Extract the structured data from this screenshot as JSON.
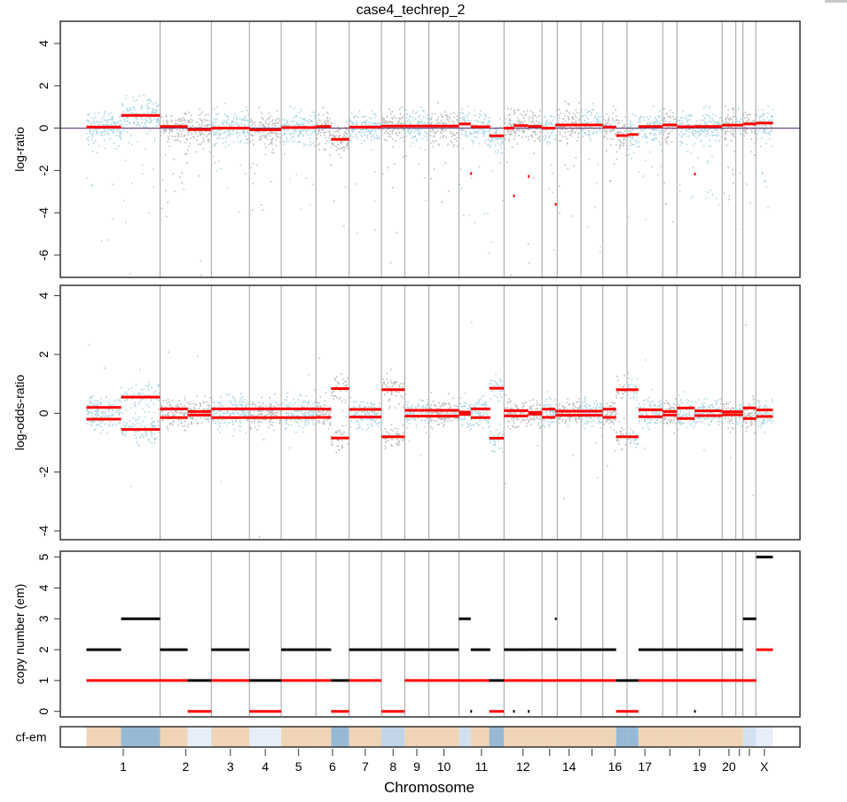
{
  "chart_data": {
    "type": "scatter",
    "title": "case4_techrep_2",
    "xlabel": "Chromosome",
    "panels": [
      {
        "id": "cnlr",
        "ylabel": "log-ratio",
        "ylim": [
          -7.05,
          5.05
        ],
        "yticks": [
          -6,
          -4,
          -2,
          0,
          2,
          4
        ],
        "hline": 0
      },
      {
        "id": "lor",
        "ylabel": "log-odds-ratio",
        "ylim": [
          -4.3,
          4.35
        ],
        "yticks": [
          -4,
          -2,
          0,
          2,
          4
        ]
      },
      {
        "id": "cn",
        "ylabel": "copy number (em)",
        "ylim": [
          -0.18,
          5.19
        ],
        "yticks": [
          0,
          1,
          2,
          3,
          4,
          5
        ]
      },
      {
        "id": "cf",
        "ylabel": "cf-em"
      }
    ],
    "xlim": [
      -55,
      1502
    ],
    "chromosomes": [
      {
        "name": "1",
        "start": 0,
        "end": 155,
        "label": "1"
      },
      {
        "name": "2",
        "start": 155,
        "end": 263,
        "label": "2"
      },
      {
        "name": "3",
        "start": 263,
        "end": 343,
        "label": "3"
      },
      {
        "name": "4",
        "start": 343,
        "end": 410,
        "label": "4"
      },
      {
        "name": "5",
        "start": 410,
        "end": 483,
        "label": "5"
      },
      {
        "name": "6",
        "start": 483,
        "end": 553,
        "label": "6"
      },
      {
        "name": "7",
        "start": 553,
        "end": 621,
        "label": "7"
      },
      {
        "name": "8",
        "start": 621,
        "end": 670,
        "label": "8"
      },
      {
        "name": "9",
        "start": 670,
        "end": 721,
        "label": "9"
      },
      {
        "name": "10",
        "start": 721,
        "end": 784,
        "label": "10"
      },
      {
        "name": "11",
        "start": 784,
        "end": 879,
        "label": "11"
      },
      {
        "name": "12",
        "start": 879,
        "end": 959,
        "label": "12"
      },
      {
        "name": "13",
        "start": 959,
        "end": 991,
        "label": ""
      },
      {
        "name": "14",
        "start": 991,
        "end": 1041,
        "label": "14"
      },
      {
        "name": "15",
        "start": 1041,
        "end": 1087,
        "label": ""
      },
      {
        "name": "16",
        "start": 1087,
        "end": 1138,
        "label": "16"
      },
      {
        "name": "17",
        "start": 1138,
        "end": 1213,
        "label": "17"
      },
      {
        "name": "18",
        "start": 1213,
        "end": 1243,
        "label": ""
      },
      {
        "name": "19",
        "start": 1243,
        "end": 1338,
        "label": "19"
      },
      {
        "name": "20",
        "start": 1338,
        "end": 1367,
        "label": "20"
      },
      {
        "name": "21",
        "start": 1367,
        "end": 1382,
        "label": ""
      },
      {
        "name": "22",
        "start": 1382,
        "end": 1409,
        "label": ""
      },
      {
        "name": "X",
        "start": 1409,
        "end": 1445,
        "label": "X"
      }
    ],
    "segments": [
      {
        "start": 0,
        "end": 73,
        "cnlr": 0.05,
        "lor": 0.2,
        "tcn": 2,
        "lcn": 1,
        "cf": "normal"
      },
      {
        "start": 73,
        "end": 155,
        "cnlr": 0.6,
        "lor": 0.55,
        "tcn": 3,
        "lcn": 1,
        "cf": "high"
      },
      {
        "start": 155,
        "end": 213,
        "cnlr": 0.08,
        "lor": 0.15,
        "tcn": 2,
        "lcn": 1,
        "cf": "normal"
      },
      {
        "start": 213,
        "end": 263,
        "cnlr": -0.07,
        "lor": 0.06,
        "tcn": 1,
        "lcn": 0,
        "cf": "low"
      },
      {
        "start": 263,
        "end": 343,
        "cnlr": 0.0,
        "lor": 0.15,
        "tcn": 2,
        "lcn": 1,
        "cf": "normal"
      },
      {
        "start": 343,
        "end": 410,
        "cnlr": -0.08,
        "lor": 0.15,
        "tcn": 1,
        "lcn": 0,
        "cf": "low"
      },
      {
        "start": 410,
        "end": 483,
        "cnlr": 0.03,
        "lor": 0.15,
        "tcn": 2,
        "lcn": 1,
        "cf": "normal"
      },
      {
        "start": 483,
        "end": 515,
        "cnlr": 0.08,
        "lor": 0.14,
        "tcn": 2,
        "lcn": 1,
        "cf": "normal"
      },
      {
        "start": 515,
        "end": 553,
        "cnlr": -0.53,
        "lor": 0.84,
        "tcn": 1,
        "lcn": 0,
        "cf": "high"
      },
      {
        "start": 553,
        "end": 621,
        "cnlr": 0.05,
        "lor": 0.13,
        "tcn": 2,
        "lcn": 1,
        "cf": "normal"
      },
      {
        "start": 621,
        "end": 670,
        "cnlr": 0.1,
        "lor": 0.8,
        "tcn": 2,
        "lcn": 0,
        "cf": "mid"
      },
      {
        "start": 670,
        "end": 784,
        "cnlr": 0.1,
        "lor": 0.1,
        "tcn": 2,
        "lcn": 1,
        "cf": "normal"
      },
      {
        "start": 784,
        "end": 809,
        "cnlr": 0.2,
        "lor": 0.04,
        "tcn": 3,
        "lcn": 1,
        "cf": "lowmid"
      },
      {
        "start": 808,
        "end": 810,
        "cnlr": -2.14,
        "lor": null,
        "tcn": 0,
        "lcn": null,
        "cf": "normal"
      },
      {
        "start": 809,
        "end": 850,
        "cnlr": 0.07,
        "lor": 0.15,
        "tcn": 2,
        "lcn": 1,
        "cf": "normal"
      },
      {
        "start": 848,
        "end": 879,
        "cnlr": -0.36,
        "lor": 0.85,
        "tcn": 1,
        "lcn": 0,
        "cf": "high"
      },
      {
        "start": 879,
        "end": 899,
        "cnlr": 0.0,
        "lor": 0.09,
        "tcn": 2,
        "lcn": 1,
        "cf": "normal"
      },
      {
        "start": 898,
        "end": 900,
        "cnlr": -3.2,
        "lor": null,
        "tcn": 0,
        "lcn": null,
        "cf": "mid"
      },
      {
        "start": 899,
        "end": 930,
        "cnlr": 0.12,
        "lor": 0.09,
        "tcn": 2,
        "lcn": 1,
        "cf": "normal"
      },
      {
        "start": 929,
        "end": 931,
        "cnlr": -2.28,
        "lor": null,
        "tcn": 0,
        "lcn": null,
        "cf": "mid"
      },
      {
        "start": 930,
        "end": 959,
        "cnlr": 0.08,
        "lor": 0.03,
        "tcn": 2,
        "lcn": 1,
        "cf": "normal"
      },
      {
        "start": 959,
        "end": 987,
        "cnlr": 0.0,
        "lor": 0.14,
        "tcn": 2,
        "lcn": 1,
        "cf": "normal"
      },
      {
        "start": 986,
        "end": 988,
        "cnlr": -3.6,
        "lor": null,
        "tcn": 3,
        "lcn": null,
        "cf": "low"
      },
      {
        "start": 987,
        "end": 1087,
        "cnlr": 0.15,
        "lor": 0.07,
        "tcn": 2,
        "lcn": 1,
        "cf": "normal"
      },
      {
        "start": 1087,
        "end": 1115,
        "cnlr": 0.05,
        "lor": 0.14,
        "tcn": 2,
        "lcn": 1,
        "cf": "normal"
      },
      {
        "start": 1115,
        "end": 1140,
        "cnlr": -0.35,
        "lor": 0.8,
        "tcn": 1,
        "lcn": 0,
        "cf": "high"
      },
      {
        "start": 1140,
        "end": 1162,
        "cnlr": -0.3,
        "lor": 0.8,
        "tcn": 1,
        "lcn": 0,
        "cf": "high"
      },
      {
        "start": 1162,
        "end": 1213,
        "cnlr": 0.08,
        "lor": 0.12,
        "tcn": 2,
        "lcn": 1,
        "cf": "normal"
      },
      {
        "start": 1213,
        "end": 1243,
        "cnlr": 0.15,
        "lor": 0.06,
        "tcn": 2,
        "lcn": 1,
        "cf": "normal"
      },
      {
        "start": 1243,
        "end": 1280,
        "cnlr": 0.07,
        "lor": 0.18,
        "tcn": 2,
        "lcn": 1,
        "cf": "normal"
      },
      {
        "start": 1279,
        "end": 1281,
        "cnlr": -2.17,
        "lor": null,
        "tcn": 0,
        "lcn": null,
        "cf": "mid"
      },
      {
        "start": 1280,
        "end": 1338,
        "cnlr": 0.08,
        "lor": 0.08,
        "tcn": 2,
        "lcn": 1,
        "cf": "normal"
      },
      {
        "start": 1338,
        "end": 1382,
        "cnlr": 0.14,
        "lor": 0.05,
        "tcn": 2,
        "lcn": 1,
        "cf": "normal"
      },
      {
        "start": 1382,
        "end": 1410,
        "cnlr": 0.2,
        "lor": 0.18,
        "tcn": 3,
        "lcn": 1,
        "cf": "lowmid"
      },
      {
        "start": 1410,
        "end": 1445,
        "cnlr": 0.24,
        "lor": 0.11,
        "tcn": 5,
        "lcn": 2,
        "cf": "low"
      }
    ],
    "colors": {
      "points_odd": "#ADD8E6",
      "points_even": "#BEBEBE",
      "segment": "#FF0000",
      "tcn": "#000000",
      "lcn": "#FF0000",
      "chrom_line": "#A0A0A0",
      "zero_line": "#6E4A7E",
      "cf": {
        "normal": "#EFD4B5",
        "high": "#97B9D6",
        "mid": "#C2D5E8",
        "lowmid": "#D2E1EE",
        "low": "#E6EEF7"
      }
    },
    "grid": false,
    "legend": "none"
  }
}
